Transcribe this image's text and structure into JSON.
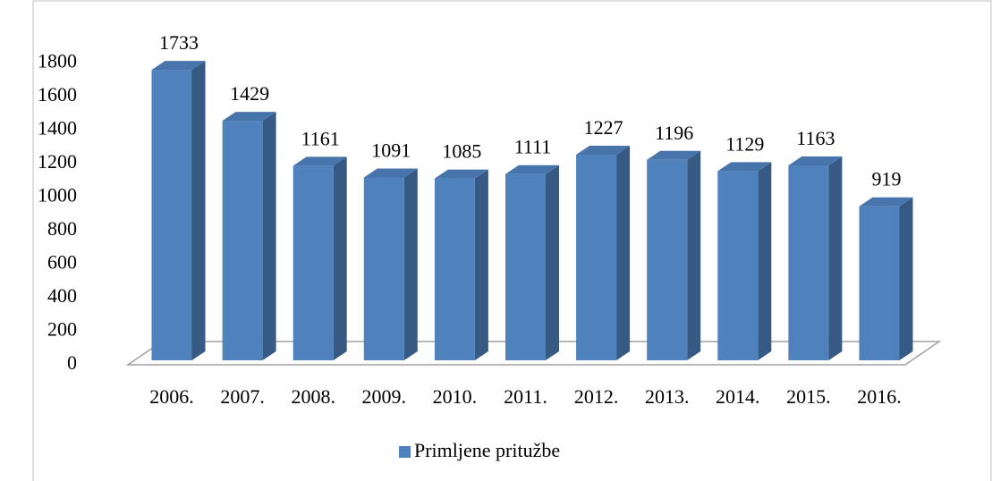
{
  "chart_data": {
    "type": "bar3d",
    "categories": [
      "2006.",
      "2007.",
      "2008.",
      "2009.",
      "2010.",
      "2011.",
      "2012.",
      "2013.",
      "2014.",
      "2015.",
      "2016."
    ],
    "series": [
      {
        "name": "Primljene pritužbe",
        "color": "#4f81bd",
        "values": [
          1733,
          1429,
          1161,
          1091,
          1085,
          1111,
          1227,
          1196,
          1129,
          1163,
          919
        ]
      }
    ],
    "ylim": [
      0,
      1800
    ],
    "yticks": [
      0,
      200,
      400,
      600,
      800,
      1000,
      1200,
      1400,
      1600,
      1800
    ],
    "legend": "bottom"
  }
}
